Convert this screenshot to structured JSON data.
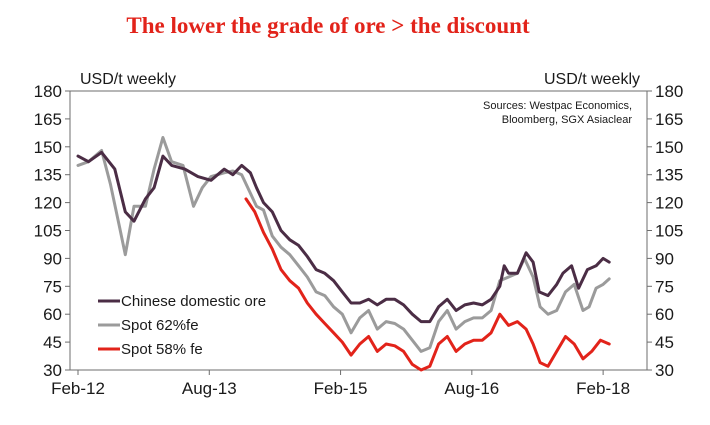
{
  "chart_data": {
    "type": "line",
    "title": "The lower the grade of ore > the discount",
    "ylabel_left": "USD/t weekly",
    "ylabel_right": "USD/t weekly",
    "source_lines": [
      "Sources: Westpac Economics,",
      "Bloomberg, SGX Asiaclear"
    ],
    "ylim": [
      30,
      180
    ],
    "yticks": [
      30,
      45,
      60,
      75,
      90,
      105,
      120,
      135,
      150,
      165,
      180
    ],
    "xlim": [
      2012.08,
      2018.25
    ],
    "xtick_labels": [
      "Feb-12",
      "Aug-13",
      "Feb-15",
      "Aug-16",
      "Feb-18"
    ],
    "xtick_values": [
      2012.08,
      2013.58,
      2015.08,
      2016.58,
      2018.08
    ],
    "legend_position": "bottom-left",
    "series": [
      {
        "name": "Chinese domestic ore",
        "color": "#4b2d45",
        "points": [
          [
            2012.08,
            145
          ],
          [
            2012.2,
            142
          ],
          [
            2012.35,
            147
          ],
          [
            2012.5,
            138
          ],
          [
            2012.62,
            115
          ],
          [
            2012.72,
            110
          ],
          [
            2012.85,
            122
          ],
          [
            2012.95,
            128
          ],
          [
            2013.05,
            145
          ],
          [
            2013.15,
            140
          ],
          [
            2013.3,
            138
          ],
          [
            2013.45,
            134
          ],
          [
            2013.6,
            132
          ],
          [
            2013.75,
            138
          ],
          [
            2013.85,
            135
          ],
          [
            2013.95,
            140
          ],
          [
            2014.05,
            136
          ],
          [
            2014.12,
            128
          ],
          [
            2014.2,
            120
          ],
          [
            2014.3,
            115
          ],
          [
            2014.4,
            105
          ],
          [
            2014.5,
            100
          ],
          [
            2014.6,
            97
          ],
          [
            2014.7,
            91
          ],
          [
            2014.8,
            84
          ],
          [
            2014.9,
            82
          ],
          [
            2015.0,
            78
          ],
          [
            2015.1,
            72
          ],
          [
            2015.2,
            66
          ],
          [
            2015.3,
            66
          ],
          [
            2015.4,
            68
          ],
          [
            2015.5,
            65
          ],
          [
            2015.6,
            68
          ],
          [
            2015.7,
            68
          ],
          [
            2015.8,
            65
          ],
          [
            2015.9,
            60
          ],
          [
            2016.0,
            56
          ],
          [
            2016.1,
            56
          ],
          [
            2016.2,
            64
          ],
          [
            2016.3,
            68
          ],
          [
            2016.4,
            62
          ],
          [
            2016.5,
            65
          ],
          [
            2016.6,
            66
          ],
          [
            2016.7,
            65
          ],
          [
            2016.8,
            68
          ],
          [
            2016.9,
            75
          ],
          [
            2016.95,
            86
          ],
          [
            2017.0,
            82
          ],
          [
            2017.1,
            82
          ],
          [
            2017.2,
            93
          ],
          [
            2017.28,
            88
          ],
          [
            2017.35,
            72
          ],
          [
            2017.45,
            70
          ],
          [
            2017.55,
            76
          ],
          [
            2017.62,
            82
          ],
          [
            2017.72,
            86
          ],
          [
            2017.8,
            74
          ],
          [
            2017.9,
            84
          ],
          [
            2018.0,
            86
          ],
          [
            2018.08,
            90
          ],
          [
            2018.15,
            88
          ]
        ]
      },
      {
        "name": "Spot 62%fe",
        "color": "#9b9b9b",
        "points": [
          [
            2012.08,
            140
          ],
          [
            2012.2,
            142
          ],
          [
            2012.35,
            148
          ],
          [
            2012.45,
            130
          ],
          [
            2012.55,
            108
          ],
          [
            2012.62,
            92
          ],
          [
            2012.72,
            118
          ],
          [
            2012.85,
            118
          ],
          [
            2012.95,
            138
          ],
          [
            2013.05,
            155
          ],
          [
            2013.15,
            142
          ],
          [
            2013.28,
            140
          ],
          [
            2013.4,
            118
          ],
          [
            2013.5,
            128
          ],
          [
            2013.6,
            134
          ],
          [
            2013.75,
            136
          ],
          [
            2013.85,
            137
          ],
          [
            2013.95,
            135
          ],
          [
            2014.05,
            125
          ],
          [
            2014.12,
            118
          ],
          [
            2014.2,
            116
          ],
          [
            2014.3,
            102
          ],
          [
            2014.4,
            96
          ],
          [
            2014.5,
            92
          ],
          [
            2014.6,
            86
          ],
          [
            2014.7,
            80
          ],
          [
            2014.8,
            72
          ],
          [
            2014.9,
            70
          ],
          [
            2015.0,
            64
          ],
          [
            2015.1,
            60
          ],
          [
            2015.2,
            50
          ],
          [
            2015.3,
            58
          ],
          [
            2015.4,
            62
          ],
          [
            2015.5,
            52
          ],
          [
            2015.6,
            56
          ],
          [
            2015.7,
            55
          ],
          [
            2015.8,
            52
          ],
          [
            2015.9,
            46
          ],
          [
            2016.0,
            40
          ],
          [
            2016.1,
            42
          ],
          [
            2016.2,
            56
          ],
          [
            2016.3,
            62
          ],
          [
            2016.4,
            52
          ],
          [
            2016.5,
            56
          ],
          [
            2016.6,
            58
          ],
          [
            2016.7,
            58
          ],
          [
            2016.8,
            62
          ],
          [
            2016.9,
            78
          ],
          [
            2017.0,
            80
          ],
          [
            2017.1,
            82
          ],
          [
            2017.18,
            90
          ],
          [
            2017.28,
            80
          ],
          [
            2017.36,
            64
          ],
          [
            2017.45,
            60
          ],
          [
            2017.55,
            62
          ],
          [
            2017.65,
            72
          ],
          [
            2017.75,
            76
          ],
          [
            2017.85,
            62
          ],
          [
            2017.92,
            64
          ],
          [
            2018.0,
            74
          ],
          [
            2018.08,
            76
          ],
          [
            2018.15,
            79
          ]
        ]
      },
      {
        "name": "Spot 58% fe",
        "color": "#e2231a",
        "points": [
          [
            2014.0,
            122
          ],
          [
            2014.1,
            115
          ],
          [
            2014.2,
            104
          ],
          [
            2014.3,
            95
          ],
          [
            2014.4,
            84
          ],
          [
            2014.5,
            78
          ],
          [
            2014.6,
            74
          ],
          [
            2014.7,
            66
          ],
          [
            2014.8,
            60
          ],
          [
            2014.9,
            55
          ],
          [
            2015.0,
            50
          ],
          [
            2015.1,
            45
          ],
          [
            2015.2,
            38
          ],
          [
            2015.3,
            44
          ],
          [
            2015.4,
            48
          ],
          [
            2015.5,
            40
          ],
          [
            2015.6,
            44
          ],
          [
            2015.7,
            43
          ],
          [
            2015.8,
            40
          ],
          [
            2015.9,
            33
          ],
          [
            2016.0,
            30
          ],
          [
            2016.1,
            32
          ],
          [
            2016.2,
            44
          ],
          [
            2016.3,
            48
          ],
          [
            2016.4,
            40
          ],
          [
            2016.5,
            44
          ],
          [
            2016.6,
            46
          ],
          [
            2016.7,
            46
          ],
          [
            2016.8,
            50
          ],
          [
            2016.9,
            60
          ],
          [
            2017.0,
            54
          ],
          [
            2017.1,
            56
          ],
          [
            2017.2,
            52
          ],
          [
            2017.28,
            44
          ],
          [
            2017.36,
            34
          ],
          [
            2017.45,
            32
          ],
          [
            2017.55,
            40
          ],
          [
            2017.65,
            48
          ],
          [
            2017.75,
            44
          ],
          [
            2017.85,
            36
          ],
          [
            2017.95,
            40
          ],
          [
            2018.05,
            46
          ],
          [
            2018.15,
            44
          ]
        ]
      }
    ]
  }
}
